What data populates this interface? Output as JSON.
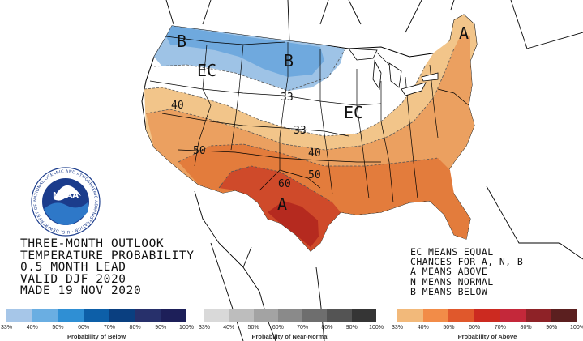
{
  "map": {
    "labels": {
      "below_nw": "B",
      "below_north": "B",
      "ec_west": "EC",
      "ec_midwest": "EC",
      "above_northeast": "A",
      "above_south": "A",
      "c40": "40",
      "c50": "50",
      "c33_a": "33",
      "c33_b": "33",
      "c40_b": "40",
      "c50_b": "50",
      "c60": "60"
    },
    "colors": {
      "below_40": "#9ec3e6",
      "below_50": "#6fa9de",
      "above_33": "#f2c58a",
      "above_40": "#eba060",
      "above_50": "#e37c3c",
      "above_60": "#cf4a2a",
      "above_70": "#b52a1f"
    }
  },
  "noaa_logo": {
    "center_text": "NOAA",
    "ring_text": "NATIONAL OCEANIC AND ATMOSPHERIC ADMINISTRATION · U.S. DEPARTMENT OF COMMERCE"
  },
  "outlook": {
    "line1": "THREE-MONTH OUTLOOK",
    "line2": "TEMPERATURE PROBABILITY",
    "line3": "0.5 MONTH LEAD",
    "line4": "VALID DJF 2020",
    "line5": "MADE 19 NOV 2020"
  },
  "legend": {
    "line1": "EC MEANS EQUAL",
    "line2": "CHANCES FOR A, N, B",
    "line3": "A MEANS ABOVE",
    "line4": "N MEANS NORMAL",
    "line5": "B MEANS BELOW"
  },
  "scales": {
    "below": {
      "caption": "Probability of Below",
      "ticks": [
        "33%",
        "40%",
        "50%",
        "60%",
        "70%",
        "80%",
        "90%",
        "100%"
      ],
      "colors": [
        "#a6c6e8",
        "#6aaee2",
        "#2f8fd4",
        "#0d5fa8",
        "#0a3f80",
        "#27306b",
        "#1d1f59"
      ]
    },
    "normal": {
      "caption": "Probability of Near-Normal",
      "ticks": [
        "33%",
        "40%",
        "50%",
        "60%",
        "70%",
        "80%",
        "90%",
        "100%"
      ],
      "colors": [
        "#d9d9d9",
        "#bdbdbd",
        "#a3a3a3",
        "#8a8a8a",
        "#6e6e6e",
        "#545454",
        "#353535"
      ]
    },
    "above": {
      "caption": "Probability of Above",
      "ticks": [
        "33%",
        "40%",
        "50%",
        "60%",
        "70%",
        "80%",
        "90%",
        "100%"
      ],
      "colors": [
        "#f2b97a",
        "#f28c48",
        "#e0582c",
        "#cc2a20",
        "#c4283a",
        "#8e2227",
        "#5b1f1f"
      ]
    }
  }
}
